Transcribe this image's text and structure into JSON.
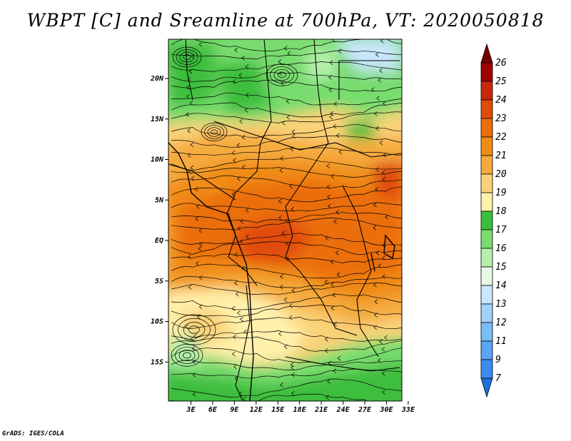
{
  "title": "WBPT [C] and Sreamline at 700hPa, VT: 2020050818",
  "credit": "GrADS: IGES/COLA",
  "map": {
    "lat_labels": [
      {
        "label": "20N",
        "lat": 20
      },
      {
        "label": "15N",
        "lat": 15
      },
      {
        "label": "10N",
        "lat": 10
      },
      {
        "label": "5N",
        "lat": 5
      },
      {
        "label": "EQ",
        "lat": 0
      },
      {
        "label": "5S",
        "lat": -5
      },
      {
        "label": "10S",
        "lat": -10
      },
      {
        "label": "15S",
        "lat": -15
      }
    ],
    "lon_labels": [
      {
        "label": "3E",
        "lon": 3
      },
      {
        "label": "6E",
        "lon": 6
      },
      {
        "label": "9E",
        "lon": 9
      },
      {
        "label": "12E",
        "lon": 12
      },
      {
        "label": "15E",
        "lon": 15
      },
      {
        "label": "18E",
        "lon": 18
      },
      {
        "label": "21E",
        "lon": 21
      },
      {
        "label": "24E",
        "lon": 24
      },
      {
        "label": "27E",
        "lon": 27
      },
      {
        "label": "30E",
        "lon": 30
      },
      {
        "label": "33E",
        "lon": 33
      }
    ]
  },
  "colorbar": {
    "levels": [
      "7",
      "9",
      "11",
      "12",
      "13",
      "14",
      "15",
      "16",
      "17",
      "18",
      "19",
      "20",
      "21",
      "22",
      "23",
      "24",
      "25",
      "26"
    ],
    "colors": [
      "#1f6fdc",
      "#3c8cf0",
      "#5aa5f5",
      "#78bef8",
      "#a0d2fa",
      "#c8e6fc",
      "#e6f8e6",
      "#b4f0aa",
      "#78dc6e",
      "#3cbe3c",
      "#fff0aa",
      "#fad278",
      "#f5aa3c",
      "#f08c14",
      "#eb6e0a",
      "#e14b0a",
      "#c8280a",
      "#a00000",
      "#780000"
    ]
  }
}
